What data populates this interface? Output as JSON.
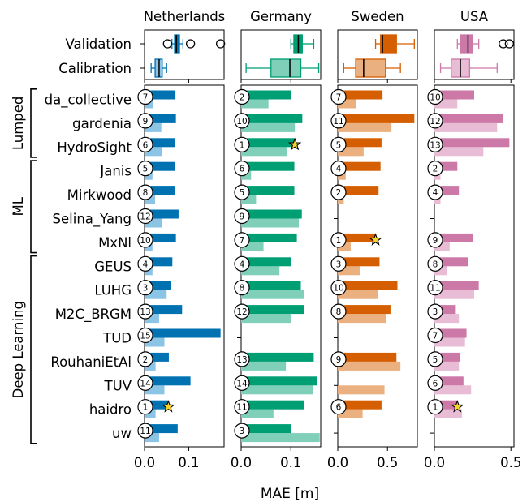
{
  "chart_data": {
    "type": "bar",
    "xlabel": "MAE [m]",
    "models": [
      "da_collective",
      "gardenia",
      "HydroSight",
      "Janis",
      "Mirkwood",
      "Selina_Yang",
      "MxNl",
      "GEUS",
      "LUHG",
      "M2C_BRGM",
      "TUD",
      "RouhaniEtAl",
      "TUV",
      "haidro",
      "uw"
    ],
    "groups": [
      {
        "label": "Lumped",
        "first": 0,
        "last": 2
      },
      {
        "label": "ML",
        "first": 3,
        "last": 6
      },
      {
        "label": "Deep Learning",
        "first": 7,
        "last": 14
      }
    ],
    "box_categories": [
      "Validation",
      "Calibration"
    ],
    "panels": [
      {
        "title": "Netherlands",
        "color_dark": "#0072b2",
        "color_light": "#8cc4e6",
        "xlim": [
          0,
          0.18
        ],
        "ticks": [
          {
            "value": 0,
            "label": "0.0"
          },
          {
            "value": 0.1,
            "label": "0.1"
          }
        ],
        "validation": [
          0.07,
          0.071,
          0.068,
          0.068,
          0.069,
          0.077,
          0.071,
          0.063,
          0.059,
          0.085,
          0.172,
          0.055,
          0.104,
          0.054,
          0.075
        ],
        "calibration": [
          0.02,
          0.038,
          0.04,
          0.018,
          0.024,
          0.04,
          0.018,
          0.018,
          0.05,
          0.033,
          0.045,
          0.025,
          0.045,
          0.025,
          0.033
        ],
        "ranks": [
          7,
          9,
          6,
          5,
          8,
          12,
          10,
          4,
          3,
          13,
          15,
          2,
          14,
          1,
          11
        ],
        "star": 13,
        "box_validation": {
          "whisker_low": 0.062,
          "q1": 0.068,
          "median": 0.072,
          "q3": 0.079,
          "whisker_high": 0.087,
          "outliers": [
            0.052,
            0.104,
            0.172
          ]
        },
        "box_calibration": {
          "whisker_low": 0.015,
          "q1": 0.024,
          "median": 0.033,
          "q3": 0.04,
          "whisker_high": 0.05,
          "outliers": []
        }
      },
      {
        "title": "Germany",
        "color_dark": "#009e73",
        "color_light": "#7fcfb9",
        "xlim": [
          0,
          0.16
        ],
        "ticks": [
          {
            "value": 0,
            "label": "0.0"
          },
          {
            "value": 0.1,
            "label": "0.1"
          }
        ],
        "validation": [
          0.1,
          0.123,
          0.108,
          0.107,
          0.107,
          0.122,
          0.112,
          0.101,
          0.12,
          0.126,
          null,
          0.146,
          0.153,
          0.126,
          0.1
        ],
        "calibration": [
          0.055,
          0.108,
          0.092,
          0.02,
          0.03,
          0.116,
          0.045,
          0.077,
          0.127,
          0.1,
          null,
          0.09,
          0.145,
          0.065,
          0.158
        ],
        "ranks": [
          2,
          10,
          1,
          6,
          5,
          9,
          7,
          4,
          8,
          12,
          null,
          13,
          14,
          11,
          3
        ],
        "star": 2,
        "box_validation": {
          "whisker_low": 0.1,
          "q1": 0.106,
          "median": 0.115,
          "q3": 0.123,
          "whisker_high": 0.146,
          "outliers": []
        },
        "box_calibration": {
          "whisker_low": 0.01,
          "q1": 0.06,
          "median": 0.098,
          "q3": 0.12,
          "whisker_high": 0.156,
          "outliers": []
        }
      },
      {
        "title": "Sweden",
        "color_dark": "#d55e00",
        "color_light": "#eab080",
        "xlim": [
          0,
          0.8
        ],
        "ticks": [
          {
            "value": 0,
            "label": "0.0"
          },
          {
            "value": 0.5,
            "label": "0.5"
          }
        ],
        "validation": [
          0.45,
          0.77,
          0.44,
          0.43,
          0.41,
          null,
          0.38,
          0.42,
          0.6,
          0.53,
          null,
          0.59,
          null,
          0.44,
          null
        ],
        "calibration": [
          0.18,
          0.54,
          0.26,
          0.08,
          0.06,
          null,
          0.13,
          0.22,
          0.4,
          0.49,
          null,
          0.63,
          0.47,
          0.25,
          null
        ],
        "ranks": [
          7,
          11,
          5,
          4,
          2,
          null,
          1,
          3,
          10,
          8,
          null,
          9,
          null,
          6,
          null
        ],
        "star": 6,
        "box_validation": {
          "whisker_low": 0.38,
          "q1": 0.43,
          "median": 0.45,
          "q3": 0.59,
          "whisker_high": 0.77,
          "outliers": []
        },
        "box_calibration": {
          "whisker_low": 0.06,
          "q1": 0.18,
          "median": 0.26,
          "q3": 0.48,
          "whisker_high": 0.63,
          "outliers": []
        }
      },
      {
        "title": "USA",
        "color_dark": "#cc79a7",
        "color_light": "#e8bcd4",
        "xlim": [
          0,
          0.52
        ],
        "ticks": [
          {
            "value": 0,
            "label": "0.0"
          },
          {
            "value": 0.5,
            "label": "0.5"
          }
        ],
        "validation": [
          0.26,
          0.45,
          0.49,
          0.15,
          0.16,
          null,
          0.25,
          0.22,
          0.29,
          0.14,
          0.21,
          0.17,
          0.19,
          0.15,
          null
        ],
        "calibration": [
          0.15,
          0.41,
          0.32,
          0.04,
          0.04,
          null,
          0.1,
          0.08,
          0.26,
          0.16,
          0.2,
          0.16,
          0.24,
          0.18,
          null
        ],
        "ranks": [
          10,
          12,
          13,
          2,
          4,
          null,
          9,
          8,
          11,
          3,
          7,
          5,
          6,
          1,
          null
        ],
        "star": 13,
        "box_validation": {
          "whisker_low": 0.15,
          "q1": 0.17,
          "median": 0.22,
          "q3": 0.25,
          "whisker_high": 0.29,
          "outliers": [
            0.45,
            0.49
          ]
        },
        "box_calibration": {
          "whisker_low": 0.04,
          "q1": 0.11,
          "median": 0.17,
          "q3": 0.23,
          "whisker_high": 0.41,
          "outliers": []
        }
      }
    ]
  }
}
